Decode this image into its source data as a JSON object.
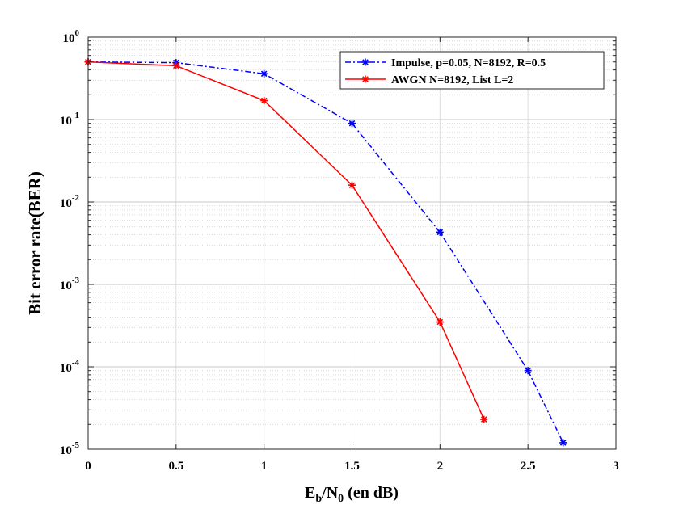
{
  "chart_data": {
    "type": "line",
    "title": "",
    "xlabel": {
      "base": "E",
      "sub1": "b",
      "mid": "/N",
      "sub2": "0",
      "tail": " (en dB)"
    },
    "ylabel": "Bit error rate(BER)",
    "xlim": [
      0,
      3
    ],
    "ylim": [
      1e-05,
      1
    ],
    "yscale": "log",
    "grid": true,
    "legend_position": "top-right",
    "x_tick_labels": [
      "0",
      "0.5",
      "1",
      "1.5",
      "2",
      "2.5",
      "3"
    ],
    "y_tick_labels": [
      {
        "base": "10",
        "exp": "-5"
      },
      {
        "base": "10",
        "exp": "-4"
      },
      {
        "base": "10",
        "exp": "-3"
      },
      {
        "base": "10",
        "exp": "-2"
      },
      {
        "base": "10",
        "exp": "-1"
      },
      {
        "base": "10",
        "exp": "0"
      }
    ],
    "series": [
      {
        "name": "Impulse, p=0.05, N=8192, R=0.5",
        "color": "#0000ff",
        "line_style": "dash-dot",
        "marker": "asterisk",
        "x": [
          0,
          0.5,
          1,
          1.5,
          2,
          2.5,
          2.7
        ],
        "y": [
          0.5,
          0.49,
          0.36,
          0.09,
          0.0043,
          9e-05,
          1.2e-05
        ]
      },
      {
        "name": "AWGN N=8192, List L=2",
        "color": "#ff0000",
        "line_style": "solid",
        "marker": "asterisk",
        "x": [
          0,
          0.5,
          1,
          1.5,
          2,
          2.25
        ],
        "y": [
          0.5,
          0.45,
          0.17,
          0.016,
          0.00035,
          2.3e-05
        ]
      }
    ]
  }
}
